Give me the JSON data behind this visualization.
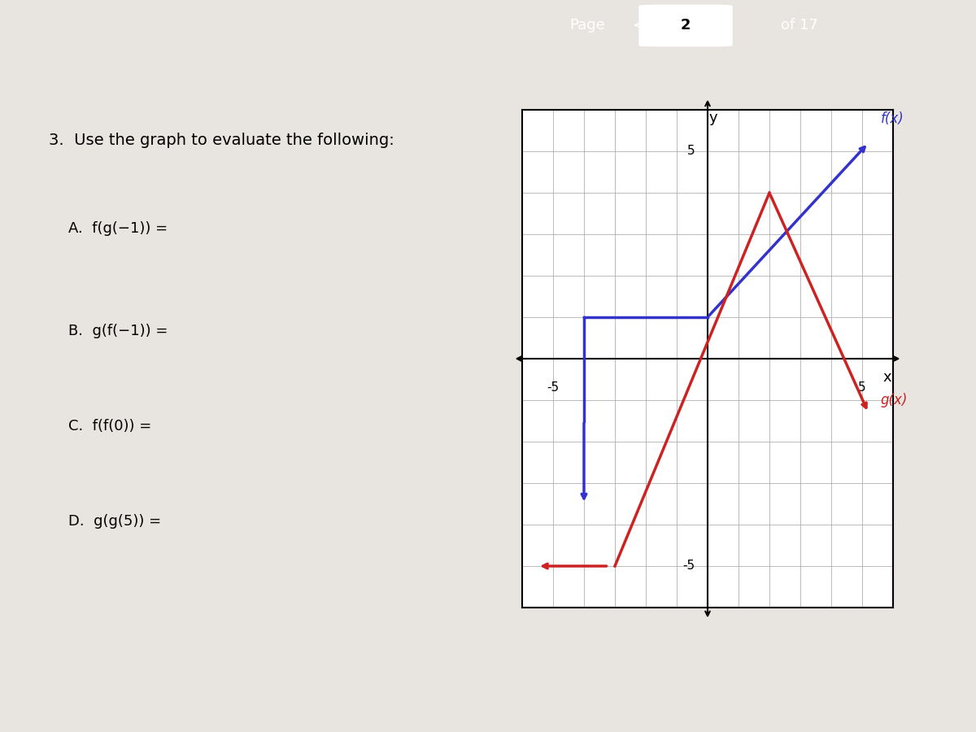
{
  "background_color": "#e8e4df",
  "header_color": "#2d3f4f",
  "page_text": "Page",
  "page_num": "2",
  "page_total": "of 17",
  "question_text": "3.  Use the graph to evaluate the following:",
  "parts": [
    "A.  f(g(−1)) =",
    "B.  g(f(−1)) =",
    "C.  f(f(0)) =",
    "D.  g(g(5)) ="
  ],
  "f_label": "f(x)",
  "g_label": "g(x)",
  "f_color": "#3333cc",
  "g_color": "#cc2222",
  "axis_color": "#000000",
  "grid_color": "#aaaaaa",
  "xlim": [
    -6,
    6
  ],
  "ylim": [
    -6,
    6
  ]
}
